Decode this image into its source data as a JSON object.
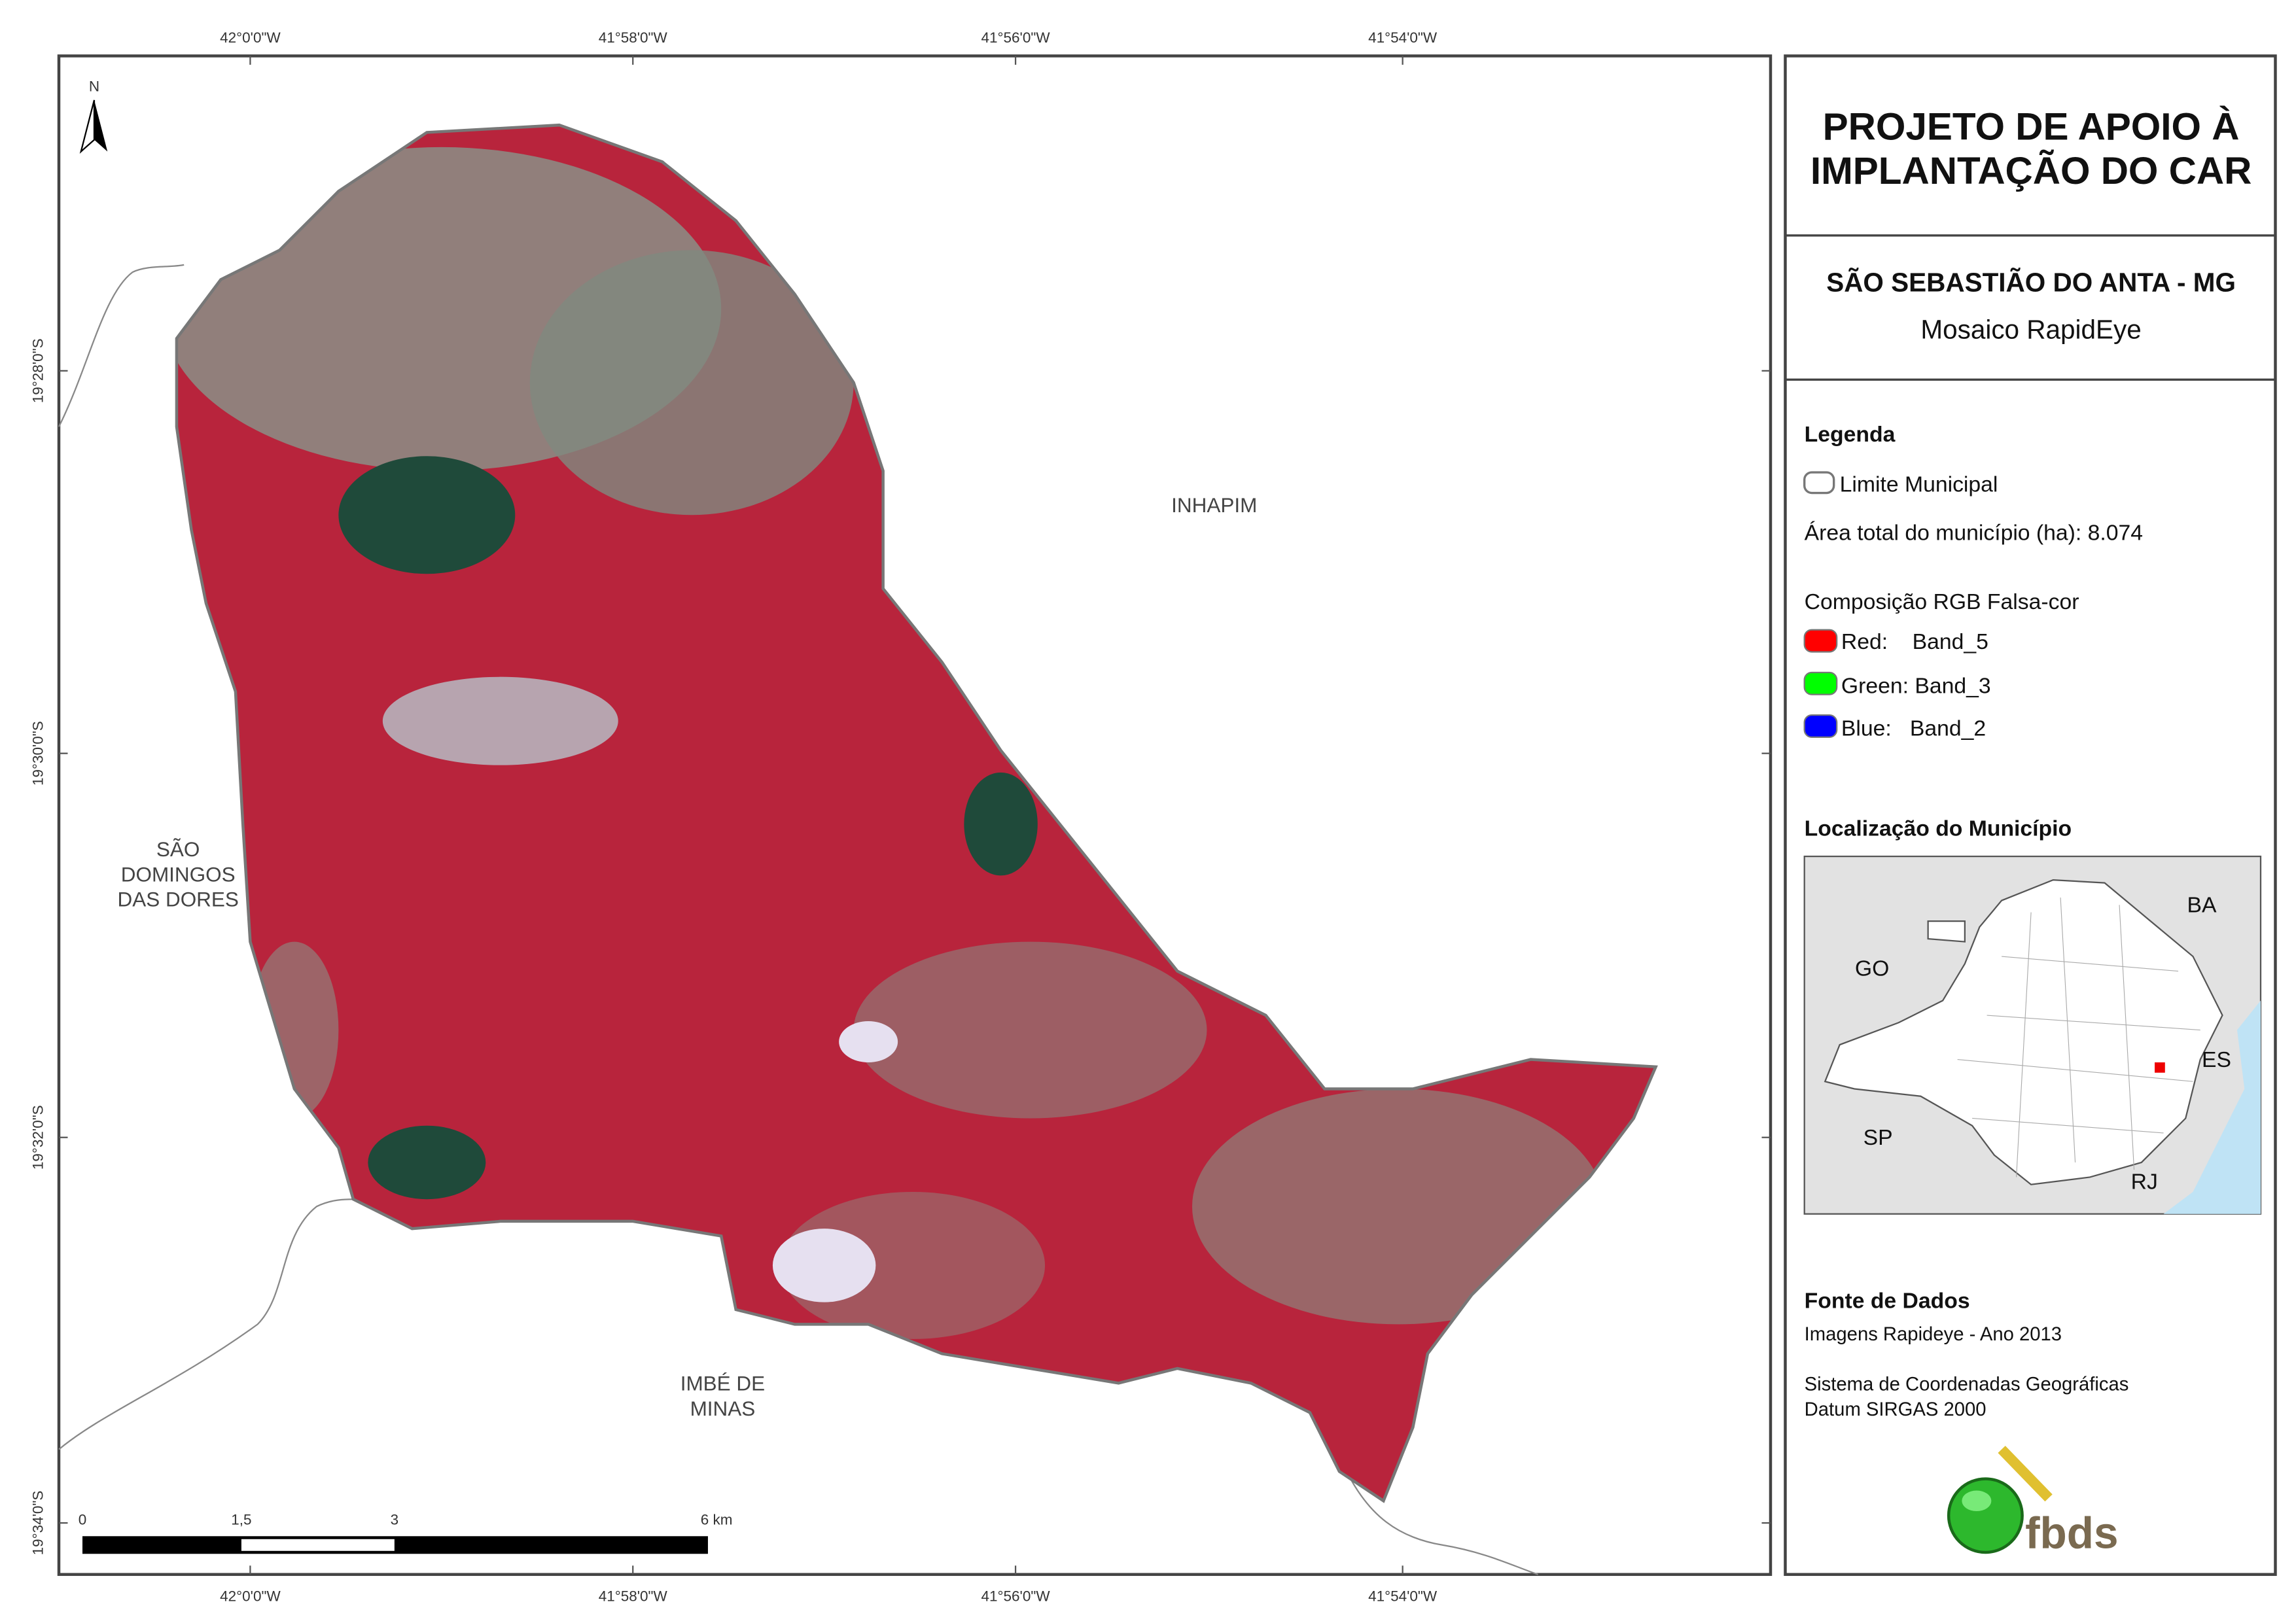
{
  "map": {
    "north_arrow": "N",
    "top_coordinates": [
      "42°0'0\"W",
      "41°58'0\"W",
      "41°56'0\"W",
      "41°54'0\"W"
    ],
    "bottom_coordinates": [
      "42°0'0\"W",
      "41°58'0\"W",
      "41°56'0\"W",
      "41°54'0\"W"
    ],
    "left_coordinates": [
      "19°28'0\"S",
      "19°30'0\"S",
      "19°32'0\"S",
      "19°34'0\"S"
    ],
    "neighbors": {
      "inhapim": [
        "INHAPIM"
      ],
      "sao_domingos": [
        "SÃO",
        "DOMINGOS",
        "DAS DORES"
      ],
      "imbe": [
        "IMBÉ DE",
        "MINAS"
      ]
    },
    "scale_bar": [
      "0",
      "1,5",
      "3",
      "6 km"
    ]
  },
  "panel": {
    "title": [
      "PROJETO DE APOIO À",
      "IMPLANTAÇÃO DO CAR"
    ],
    "municipality": "SÃO SEBASTIÃO DO ANTA - MG",
    "subtitle": "Mosaico RapidEye",
    "legend": {
      "heading": "Legenda",
      "boundary": "Limite Municipal",
      "area": "Área total do município (ha): 8.074",
      "composition": "Composição RGB Falsa-cor",
      "bands": [
        "Red:    Band_5",
        "Green: Band_3",
        "Blue:   Band_2"
      ]
    },
    "location": {
      "heading": "Localização do Município",
      "states": [
        "BA",
        "GO",
        "ES",
        "SP",
        "RJ"
      ]
    },
    "sources": {
      "heading": "Fonte de Dados",
      "lines": [
        "Imagens Rapideye - Ano 2013",
        "Sistema de Coordenadas Geográficas",
        "Datum SIRGAS 2000"
      ]
    },
    "logo": "fbds"
  }
}
